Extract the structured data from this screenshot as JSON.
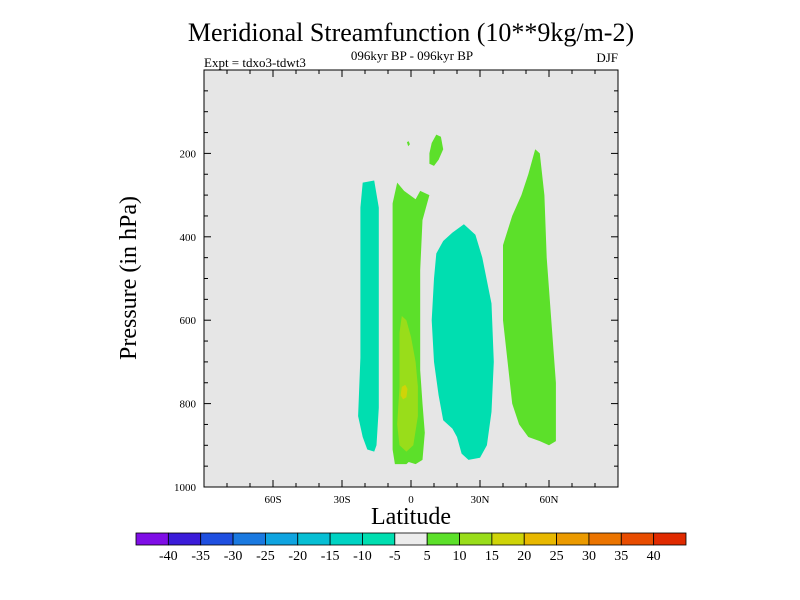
{
  "chart_data": {
    "type": "contour",
    "title": "Meridional Streamfunction (10**9kg/m-2)",
    "subtitle_left": "Expt = tdxo3-tdwt3",
    "subtitle_center": "096kyr BP - 096kyr BP",
    "subtitle_right": "DJF",
    "xlabel": "Latitude",
    "ylabel": "Pressure (in hPa)",
    "xlim": [
      -90,
      90
    ],
    "ylim": [
      1000,
      0
    ],
    "x_ticks": [
      {
        "value": -60,
        "label": "60S"
      },
      {
        "value": -30,
        "label": "30S"
      },
      {
        "value": 0,
        "label": "0"
      },
      {
        "value": 30,
        "label": "30N"
      },
      {
        "value": 60,
        "label": "60N"
      }
    ],
    "y_ticks": [
      {
        "value": 200,
        "label": "200"
      },
      {
        "value": 400,
        "label": "400"
      },
      {
        "value": 600,
        "label": "600"
      },
      {
        "value": 800,
        "label": "800"
      },
      {
        "value": 1000,
        "label": "1000"
      }
    ],
    "background_color": "#e6e6e6",
    "colorbar": {
      "labels": [
        "-40",
        "-35",
        "-30",
        "-25",
        "-20",
        "-15",
        "-10",
        "-5",
        "5",
        "10",
        "15",
        "20",
        "25",
        "30",
        "35",
        "40"
      ],
      "colors": [
        "#7f0ee6",
        "#3b1cd9",
        "#1f4fe0",
        "#1a79e0",
        "#0fa4e0",
        "#07bfd4",
        "#00d3c3",
        "#00deb0",
        "#ececec",
        "#5ce02a",
        "#99dd1a",
        "#cfd408",
        "#e8b800",
        "#eb9a00",
        "#eb7400",
        "#e84c00",
        "#e02a00"
      ]
    },
    "regions": [
      {
        "name": "band-neg-sh",
        "color": "#00deb0",
        "points": [
          [
            -21,
            270
          ],
          [
            -16,
            265
          ],
          [
            -14,
            330
          ],
          [
            -14,
            450
          ],
          [
            -14,
            570
          ],
          [
            -14,
            690
          ],
          [
            -14,
            810
          ],
          [
            -15,
            900
          ],
          [
            -16,
            915
          ],
          [
            -19,
            910
          ],
          [
            -21,
            880
          ],
          [
            -23,
            830
          ],
          [
            -22,
            690
          ],
          [
            -22,
            570
          ],
          [
            -22,
            450
          ],
          [
            -22,
            330
          ]
        ]
      },
      {
        "name": "band-pos-eq",
        "color": "#5ce02a",
        "points": [
          [
            -6,
            270
          ],
          [
            -3,
            290
          ],
          [
            2,
            310
          ],
          [
            4,
            290
          ],
          [
            8,
            300
          ],
          [
            5,
            360
          ],
          [
            4,
            480
          ],
          [
            4,
            600
          ],
          [
            4,
            720
          ],
          [
            5,
            800
          ],
          [
            6,
            870
          ],
          [
            5,
            935
          ],
          [
            2,
            945
          ],
          [
            -1,
            940
          ],
          [
            -2,
            945
          ],
          [
            -7,
            945
          ],
          [
            -8,
            910
          ],
          [
            -8,
            800
          ],
          [
            -8,
            600
          ],
          [
            -8,
            420
          ],
          [
            -8,
            320
          ]
        ]
      },
      {
        "name": "patch-pos-upper",
        "color": "#5ce02a",
        "points": [
          [
            8,
            200
          ],
          [
            9,
            175
          ],
          [
            11,
            155
          ],
          [
            13,
            160
          ],
          [
            14,
            190
          ],
          [
            12,
            215
          ],
          [
            10,
            230
          ],
          [
            8,
            225
          ]
        ]
      },
      {
        "name": "patch-pos-tiny",
        "color": "#5ce02a",
        "points": [
          [
            -1.8,
            173
          ],
          [
            -1,
            171
          ],
          [
            -0.5,
            178
          ],
          [
            -1.2,
            183
          ]
        ]
      },
      {
        "name": "band-neg-eq",
        "color": "#00deb0",
        "points": [
          [
            10,
            500
          ],
          [
            11,
            440
          ],
          [
            14,
            410
          ],
          [
            18,
            390
          ],
          [
            23,
            370
          ],
          [
            28,
            395
          ],
          [
            31,
            450
          ],
          [
            35,
            560
          ],
          [
            36,
            700
          ],
          [
            35,
            820
          ],
          [
            33,
            900
          ],
          [
            30,
            930
          ],
          [
            25,
            935
          ],
          [
            22,
            920
          ],
          [
            20,
            880
          ],
          [
            18,
            860
          ],
          [
            14,
            840
          ],
          [
            12,
            780
          ],
          [
            10,
            700
          ],
          [
            9,
            600
          ]
        ]
      },
      {
        "name": "band-pos-nh",
        "color": "#5ce02a",
        "points": [
          [
            40,
            420
          ],
          [
            44,
            350
          ],
          [
            48,
            300
          ],
          [
            51,
            250
          ],
          [
            54,
            190
          ],
          [
            56,
            200
          ],
          [
            58,
            300
          ],
          [
            59,
            450
          ],
          [
            61,
            600
          ],
          [
            63,
            750
          ],
          [
            63,
            890
          ],
          [
            60,
            900
          ],
          [
            56,
            890
          ],
          [
            51,
            880
          ],
          [
            47,
            850
          ],
          [
            44,
            800
          ],
          [
            42,
            700
          ],
          [
            40,
            600
          ],
          [
            40,
            500
          ]
        ]
      },
      {
        "name": "core-pos-eq",
        "color": "#99dd1a",
        "points": [
          [
            -4,
            590
          ],
          [
            -2,
            600
          ],
          [
            0,
            640
          ],
          [
            2,
            700
          ],
          [
            3,
            760
          ],
          [
            3,
            830
          ],
          [
            1,
            900
          ],
          [
            -2,
            915
          ],
          [
            -5,
            900
          ],
          [
            -6,
            850
          ],
          [
            -5,
            760
          ],
          [
            -5,
            680
          ],
          [
            -5,
            630
          ]
        ]
      },
      {
        "name": "core-max-eq",
        "color": "#cfd408",
        "points": [
          [
            -4,
            760
          ],
          [
            -2.5,
            755
          ],
          [
            -1.5,
            765
          ],
          [
            -2,
            785
          ],
          [
            -3.5,
            790
          ],
          [
            -4.5,
            780
          ]
        ]
      }
    ]
  }
}
